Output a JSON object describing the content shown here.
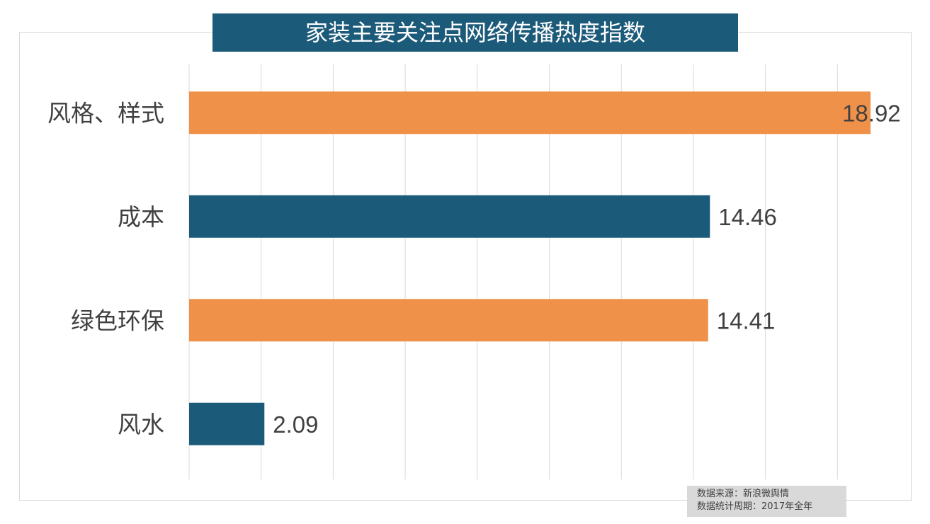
{
  "chart_data": {
    "type": "bar",
    "orientation": "horizontal",
    "title": "家装主要关注点网络传播热度指数",
    "categories": [
      "风格、样式",
      "成本",
      "绿色环保",
      "风水"
    ],
    "values": [
      18.92,
      14.46,
      14.41,
      2.09
    ],
    "data_labels": [
      "18.92",
      "14.46",
      "14.41",
      "2.09"
    ],
    "bar_colors": [
      "#f0914a",
      "#1c5a7a",
      "#f0914a",
      "#1c5a7a"
    ],
    "xlim": [
      0,
      20
    ],
    "x_gridlines": [
      0,
      2,
      4,
      6,
      8,
      10,
      12,
      14,
      16,
      18
    ],
    "grid": true,
    "x_tick_labels_shown": false,
    "legend": "none"
  },
  "source": {
    "line1": "数据来源：新浪微舆情",
    "line2": "数据统计周期：2017年全年"
  },
  "colors": {
    "title_bg": "#1c5a7a",
    "gridline": "#d9d9d9",
    "label_text": "#404040"
  }
}
